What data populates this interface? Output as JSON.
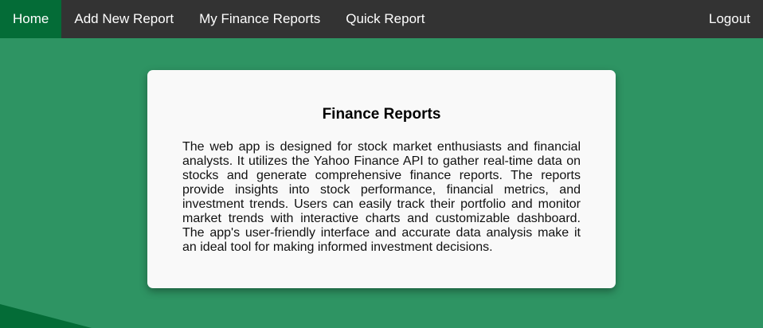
{
  "nav": {
    "home": "Home",
    "add_new_report": "Add New Report",
    "my_finance_reports": "My Finance Reports",
    "quick_report": "Quick Report",
    "logout": "Logout"
  },
  "card": {
    "title": "Finance Reports",
    "description": "The web app is designed for stock market enthusiasts and financial analysts. It utilizes the Yahoo Finance API to gather real-time data on stocks and generate comprehensive finance reports. The reports provide insights into stock performance, financial metrics, and investment trends. Users can easily track their portfolio and monitor market trends with interactive charts and customizable dashboard. The app's user-friendly interface and accurate data analysis make it an ideal tool for making informed investment decisions."
  },
  "colors": {
    "navbar": "#333333",
    "nav_active": "#046c37",
    "background": "#2e9463",
    "card": "#f9f9f9",
    "wave": "#046c37"
  }
}
